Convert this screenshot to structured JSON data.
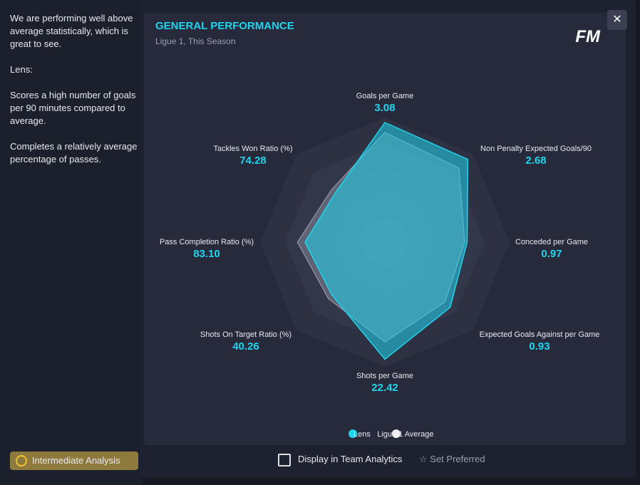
{
  "sidebar": [
    "We are performing well above average statistically, which is great to see.",
    "Lens:",
    "Scores a high number of goals per 90 minutes compared to average.",
    "Completes a relatively average percentage of passes."
  ],
  "header": {
    "title": "GENERAL PERFORMANCE",
    "subtitle": "Ligue 1, This Season",
    "logo": "FM"
  },
  "chart_data": {
    "type": "radar",
    "categories": [
      "Goals per Game",
      "Non Penalty Expected Goals/90",
      "Conceded per Game",
      "Expected Goals Against per Game",
      "Shots per Game",
      "Shots On Target Ratio (%)",
      "Pass Completion Ratio (%)",
      "Tackles Won Ratio (%)"
    ],
    "stat_labels": [
      "3.08",
      "2.68",
      "0.97",
      "0.93",
      "22.42",
      "40.26",
      "83.10",
      "74.28"
    ],
    "rlim": [
      0,
      5
    ],
    "rticks": [
      1,
      2,
      3,
      4,
      5
    ],
    "series": [
      {
        "name": "Ligue 1 Average",
        "color": "#8a8d9a",
        "values": [
          4.4,
          4.2,
          3.2,
          3.4,
          4.0,
          3.2,
          3.5,
          3.0
        ]
      },
      {
        "name": "Lens",
        "color": "#21d4ee",
        "values": [
          4.8,
          4.7,
          3.3,
          3.7,
          4.7,
          3.0,
          3.2,
          2.8
        ]
      }
    ]
  },
  "footer": {
    "analysis": "Intermediate Analysis",
    "display": "Display in Team Analytics",
    "preferred": "Set Preferred"
  }
}
